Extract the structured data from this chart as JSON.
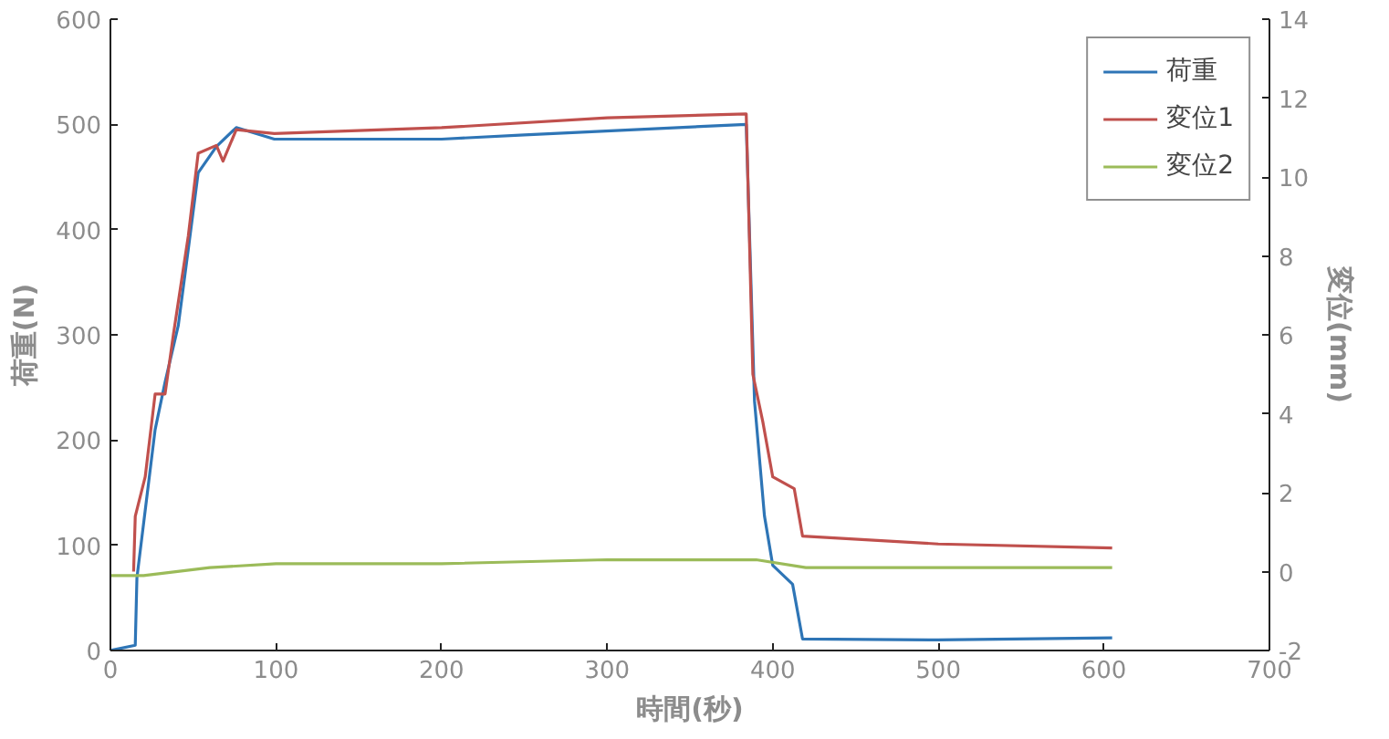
{
  "chart_data": {
    "type": "line",
    "xlabel": "時間(秒)",
    "ylabel": "荷重(N)",
    "y2label": "変位(mm)",
    "xlim": [
      0,
      700
    ],
    "xticks": [
      0,
      100,
      200,
      300,
      400,
      500,
      600,
      700
    ],
    "ylim": [
      0,
      600
    ],
    "yticks": [
      0,
      100,
      200,
      300,
      400,
      500,
      600
    ],
    "y2lim": [
      -2,
      14
    ],
    "y2ticks": [
      -2,
      0,
      2,
      4,
      6,
      8,
      10,
      12,
      14
    ],
    "grid": false,
    "legend": "top right",
    "marker": "none",
    "line_style": "solid",
    "series": [
      {
        "name": "荷重",
        "color": "#2e75b6",
        "x": [
          0,
          15,
          16,
          27,
          33,
          41,
          47,
          53,
          64,
          76,
          99,
          200,
          250,
          384,
          389,
          395,
          400,
          412,
          418,
          500,
          605
        ],
        "values": [
          0,
          5,
          69,
          210,
          255,
          309,
          381,
          454,
          479,
          497,
          486,
          486,
          490,
          500,
          237,
          128,
          81,
          63,
          11,
          10,
          12
        ]
      },
      {
        "name": "変位1",
        "color": "#c0504d",
        "axis": "y2",
        "x": [
          14,
          15,
          21,
          27,
          33,
          38,
          47,
          53,
          64,
          68,
          76,
          99,
          200,
          300,
          384,
          388,
          394,
          400,
          413,
          418,
          500,
          605
        ],
        "values": [
          0,
          1.4,
          2.4,
          4.5,
          4.5,
          6,
          8.5,
          10.6,
          10.8,
          10.4,
          11.2,
          11.1,
          11.25,
          11.5,
          11.6,
          5,
          3.8,
          2.4,
          2.1,
          0.9,
          0.7,
          0.6
        ]
      },
      {
        "name": "変位2",
        "color": "#9bbb59",
        "axis": "y2",
        "x": [
          0,
          20,
          60,
          100,
          200,
          300,
          390,
          420,
          500,
          605
        ],
        "values": [
          -0.1,
          -0.1,
          0.1,
          0.2,
          0.2,
          0.3,
          0.3,
          0.1,
          0.1,
          0.1
        ]
      }
    ]
  }
}
